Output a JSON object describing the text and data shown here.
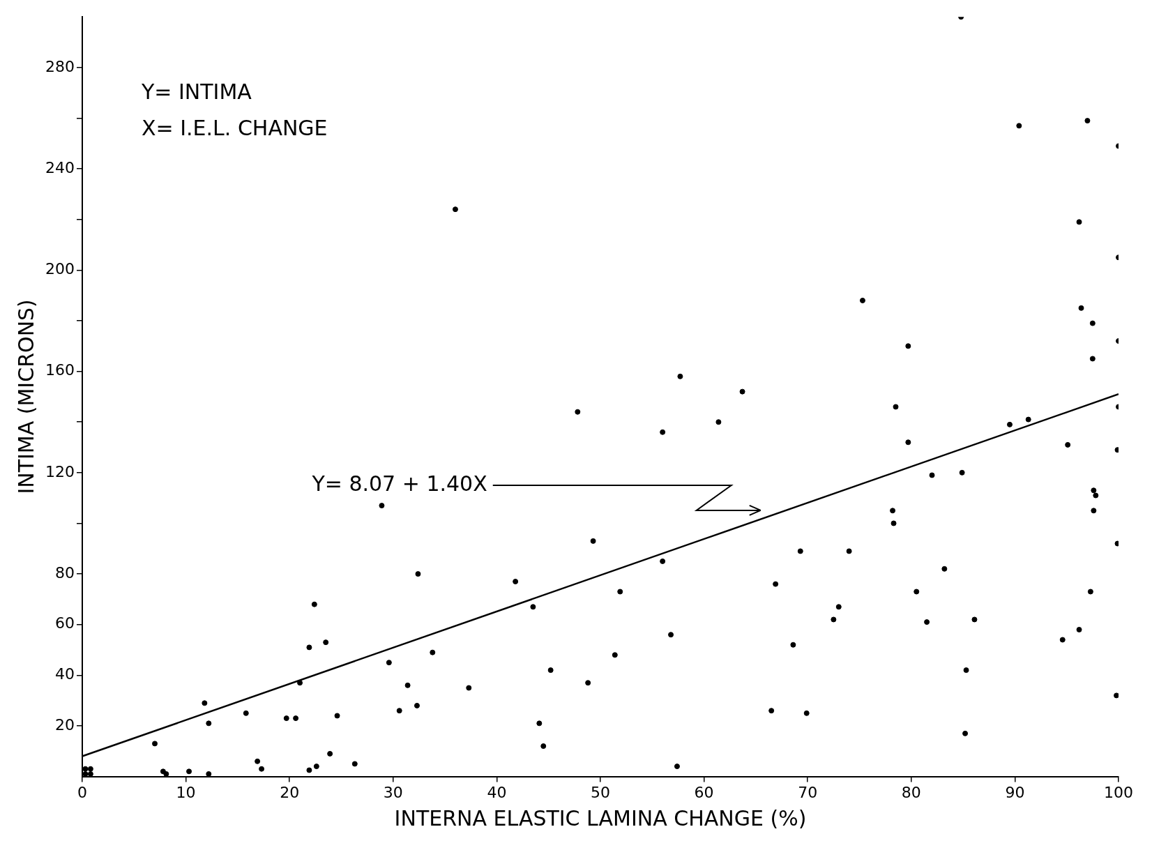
{
  "chart_data": {
    "type": "scatter",
    "xlabel": "INTERNA ELASTIC LAMINA CHANGE (%)",
    "ylabel": "INTIMA (MICRONS)",
    "xlim": [
      0,
      100
    ],
    "ylim": [
      0,
      300
    ],
    "xticks": [
      0,
      10,
      20,
      30,
      40,
      50,
      60,
      70,
      80,
      90,
      100
    ],
    "yticks": [
      20,
      40,
      60,
      80,
      {
        "value": 100,
        "label": null
      },
      120,
      {
        "value": 140,
        "label": null
      },
      160,
      {
        "value": 180,
        "label": null
      },
      200,
      {
        "value": 220,
        "label": null
      },
      240,
      {
        "value": 260,
        "label": null
      },
      280
    ],
    "grid": false,
    "legend": false,
    "marker": "circle",
    "annotations": [
      "Y= INTIMA",
      "X= I.E.L. CHANGE",
      "Y= 8.07 + 1.40X"
    ],
    "series": [
      {
        "color": "#000000",
        "x": [
          84.8,
          90.4,
          97.0,
          100,
          36.0,
          96.2,
          100,
          75.3,
          96.4,
          97.5,
          100,
          79.7,
          97.5,
          57.7,
          63.7,
          78.5,
          100,
          47.8,
          61.4,
          89.5,
          91.3,
          56.0,
          79.7,
          95.1,
          99.9,
          84.9,
          82.0,
          97.6,
          97.8,
          28.9,
          78.2,
          97.6,
          78.3,
          49.3,
          99.9,
          69.3,
          74.0,
          56.0,
          83.2,
          32.4,
          41.8,
          66.9,
          51.9,
          80.5,
          97.3,
          22.4,
          43.5,
          73.0,
          72.5,
          86.1,
          81.5,
          56.8,
          96.2,
          23.5,
          94.6,
          21.9,
          68.6,
          33.8,
          51.4,
          29.6,
          45.2,
          85.3,
          21.0,
          31.4,
          48.8,
          37.3,
          99.8,
          11.8,
          32.3,
          15.8,
          30.6,
          66.5,
          69.9,
          24.6,
          19.7,
          20.6,
          12.2,
          44.1,
          85.2,
          7.0,
          44.5,
          23.9,
          16.9,
          26.3,
          22.6,
          17.3,
          57.4,
          7.8,
          8.1,
          10.3,
          21.9,
          12.2,
          0.3,
          0.8,
          0.3,
          0.8
        ],
        "values": [
          300,
          257,
          259,
          249,
          224,
          219,
          205,
          188,
          185,
          179,
          172,
          170,
          165,
          158,
          152,
          146,
          146,
          144,
          140,
          139,
          141,
          136,
          132,
          131,
          129,
          120,
          119,
          113,
          111,
          107,
          105,
          105,
          100,
          93,
          92,
          89,
          89,
          85,
          82,
          80,
          77,
          76,
          73,
          73,
          73,
          68,
          67,
          67,
          62,
          62,
          61,
          56,
          58,
          53,
          54,
          51,
          52,
          49,
          48,
          45,
          42,
          42,
          37,
          36,
          37,
          35,
          32,
          29,
          28,
          25,
          26,
          26,
          25,
          24,
          23,
          23,
          21,
          21,
          17,
          13,
          12,
          9,
          6,
          5,
          4,
          3,
          4,
          2,
          1,
          2,
          2.5,
          1,
          3,
          3,
          1,
          1
        ]
      },
      {
        "type": "line",
        "color": "#000000",
        "marker": "none",
        "x": [
          0,
          100
        ],
        "values": [
          8,
          151
        ]
      }
    ]
  }
}
